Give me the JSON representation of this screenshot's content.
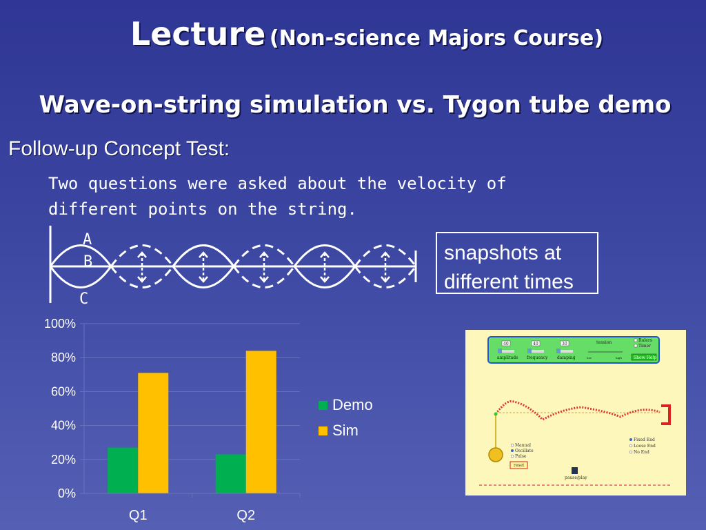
{
  "slide": {
    "title_main": "Lecture",
    "title_sub": "(Non-science Majors Course)",
    "subtitle": "Wave-on-string simulation vs. Tygon tube demo",
    "followup": "Follow-up Concept Test:",
    "body_line1": "Two questions were asked about the velocity of",
    "body_line2": "different points on the string."
  },
  "diagram": {
    "labels": {
      "a": "A",
      "b": "B",
      "c": "C"
    }
  },
  "snapshot_box": {
    "line1": "snapshots at",
    "line2": "different times"
  },
  "chart_data": {
    "type": "bar",
    "categories": [
      "Q1",
      "Q2"
    ],
    "series": [
      {
        "name": "Demo",
        "values": [
          27,
          23
        ],
        "color": "#00b050"
      },
      {
        "name": "Sim",
        "values": [
          71,
          84
        ],
        "color": "#ffc000"
      }
    ],
    "yticks": [
      "0%",
      "20%",
      "40%",
      "60%",
      "80%",
      "100%"
    ],
    "ylim": [
      0,
      100
    ],
    "grid": true,
    "legend_position": "right"
  },
  "sim": {
    "slider_values": [
      "40",
      "40",
      "30"
    ],
    "slider_labels": [
      "amplitude",
      "frequency",
      "damping"
    ],
    "tension_label": "tension",
    "tension_low": "low",
    "tension_high": "high",
    "check_rulers": "Rulers",
    "check_timer": "Timer",
    "help_button": "Show Help",
    "mode_manual": "Manual",
    "mode_oscillate": "Oscillate",
    "mode_pulse": "Pulse",
    "reset_button": "reset",
    "end_fixed": "Fixed End",
    "end_loose": "Loose End",
    "end_none": "No End",
    "pause_play": "pause/play",
    "accent": "#33cc33"
  }
}
